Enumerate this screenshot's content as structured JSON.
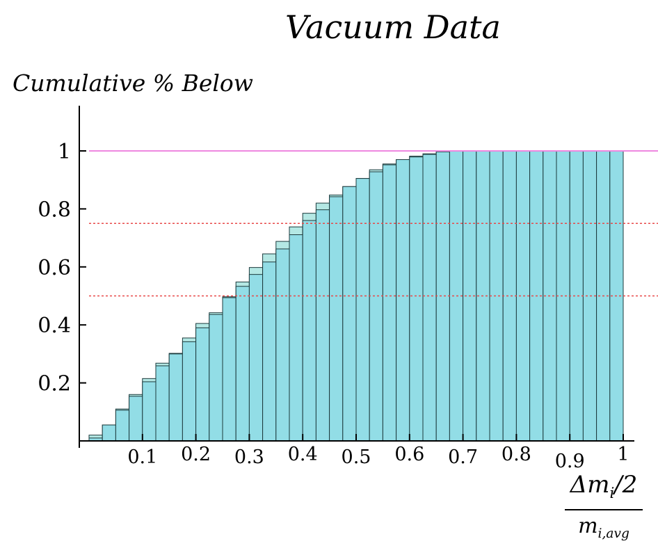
{
  "chart_data": {
    "type": "bar",
    "title": "Vacuum Data",
    "ylabel": "Cumulative % Below",
    "xlabel_numerator": "Δm_i/2",
    "xlabel_denominator": "m_i,avg",
    "xlim": [
      0,
      1
    ],
    "ylim": [
      0,
      1.12
    ],
    "xticks": [
      {
        "value": 0.1,
        "label": "0.1"
      },
      {
        "value": 0.2,
        "label": "0.2"
      },
      {
        "value": 0.3,
        "label": "0.3"
      },
      {
        "value": 0.4,
        "label": "0.4"
      },
      {
        "value": 0.5,
        "label": "0.5"
      },
      {
        "value": 0.6,
        "label": "0.6"
      },
      {
        "value": 0.7,
        "label": "0.7"
      },
      {
        "value": 0.8,
        "label": "0.8"
      },
      {
        "value": 0.9,
        "label": "0.9"
      },
      {
        "value": 1.0,
        "label": "1"
      }
    ],
    "yticks": [
      {
        "value": 0.2,
        "label": "0.2"
      },
      {
        "value": 0.4,
        "label": "0.4"
      },
      {
        "value": 0.6,
        "label": "0.6"
      },
      {
        "value": 0.8,
        "label": "0.8"
      },
      {
        "value": 1.0,
        "label": "1"
      }
    ],
    "bin_width": 0.025,
    "x": [
      0.0125,
      0.0375,
      0.0625,
      0.0875,
      0.1125,
      0.1375,
      0.1625,
      0.1875,
      0.2125,
      0.2375,
      0.2625,
      0.2875,
      0.3125,
      0.3375,
      0.3625,
      0.3875,
      0.4125,
      0.4375,
      0.4625,
      0.4875,
      0.5125,
      0.5375,
      0.5625,
      0.5875,
      0.6125,
      0.6375,
      0.6625,
      0.6875,
      0.7125,
      0.7375,
      0.7625,
      0.7875,
      0.8125,
      0.8375,
      0.8625,
      0.8875,
      0.9125,
      0.9375,
      0.9625,
      0.9875
    ],
    "series": [
      {
        "values": [
          0.02,
          0.055,
          0.11,
          0.16,
          0.215,
          0.268,
          0.302,
          0.355,
          0.405,
          0.442,
          0.497,
          0.548,
          0.598,
          0.645,
          0.688,
          0.738,
          0.785,
          0.82,
          0.848,
          0.877,
          0.905,
          0.935,
          0.955,
          0.97,
          0.982,
          0.99,
          0.997,
          1,
          1,
          1,
          1,
          1,
          1,
          1,
          1,
          1,
          1,
          1,
          1,
          1
        ]
      },
      {
        "values": [
          0.01,
          0.055,
          0.106,
          0.154,
          0.204,
          0.259,
          0.3,
          0.342,
          0.39,
          0.436,
          0.494,
          0.533,
          0.574,
          0.617,
          0.662,
          0.711,
          0.76,
          0.797,
          0.842,
          0.877,
          0.905,
          0.928,
          0.952,
          0.97,
          0.979,
          0.988,
          0.997,
          1,
          1,
          1,
          1,
          1,
          1,
          1,
          1,
          1,
          1,
          1,
          1,
          1
        ]
      }
    ],
    "reference_lines": [
      {
        "y": 1.0,
        "style": "solid"
      },
      {
        "y": 0.75,
        "style": "dotted"
      },
      {
        "y": 0.5,
        "style": "dotted"
      }
    ],
    "colors": {
      "bar_back": "#b4e8e4",
      "bar_front": "#92dde6",
      "bar_edge": "#1c3a3c",
      "line_one": "#ee88e0",
      "line_ref": "#e84848"
    },
    "grid": false,
    "legend": "none"
  }
}
